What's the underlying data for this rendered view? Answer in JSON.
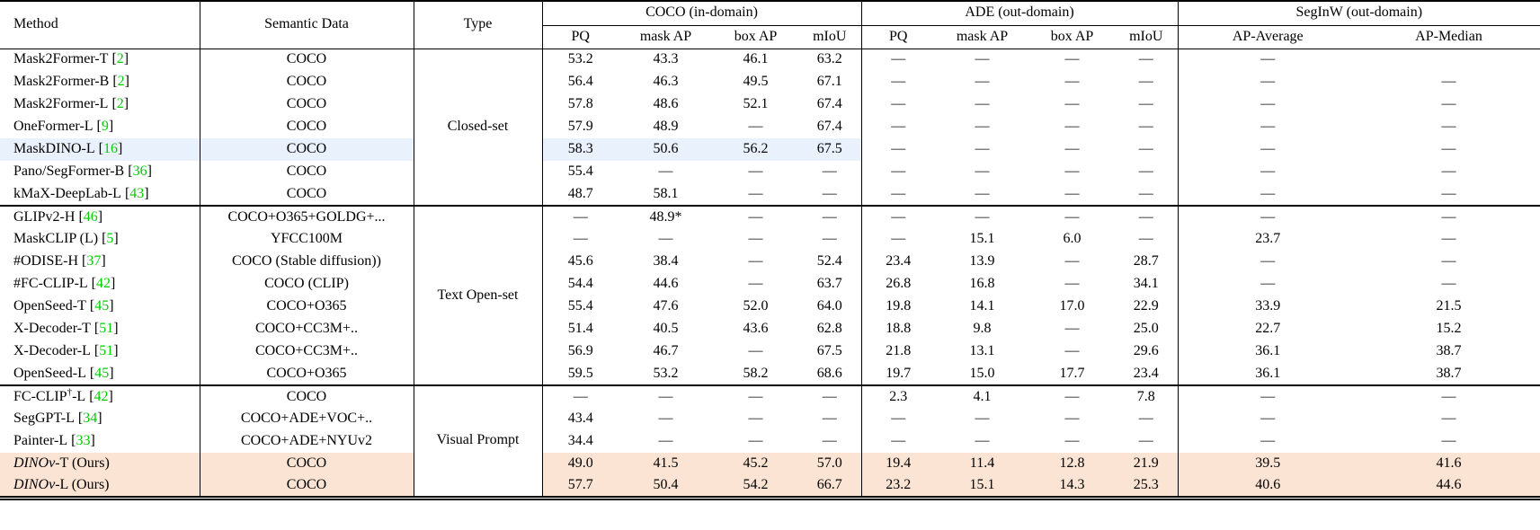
{
  "colors": {
    "citation_green": "#00cc00",
    "highlight_blue": "#e9f1fc",
    "highlight_orange": "#fbe4d3"
  },
  "header": {
    "method": "Method",
    "semantic_data": "Semantic Data",
    "type": "Type",
    "groups": [
      {
        "label": "COCO (in-domain)",
        "cols": [
          "PQ",
          "mask AP",
          "box AP",
          "mIoU"
        ]
      },
      {
        "label": "ADE (out-domain)",
        "cols": [
          "PQ",
          "mask AP",
          "box AP",
          "mIoU"
        ]
      },
      {
        "label": "SegInW (out-domain)",
        "cols": [
          "AP-Average",
          "AP-Median"
        ]
      }
    ]
  },
  "groups": [
    {
      "type_label": "Closed-set",
      "rows": [
        {
          "method": {
            "pre": "Mask2Former-T",
            "cite": "2"
          },
          "semantic": "COCO",
          "vals": [
            "53.2",
            "43.3",
            "46.1",
            "63.2",
            "—",
            "—",
            "—",
            "—",
            "—",
            ""
          ],
          "hl": ""
        },
        {
          "method": {
            "pre": "Mask2Former-B",
            "cite": "2"
          },
          "semantic": "COCO",
          "vals": [
            "56.4",
            "46.3",
            "49.5",
            "67.1",
            "—",
            "—",
            "—",
            "—",
            "—",
            "—"
          ],
          "hl": ""
        },
        {
          "method": {
            "pre": "Mask2Former-L",
            "cite": "2"
          },
          "semantic": "COCO",
          "vals": [
            "57.8",
            "48.6",
            "52.1",
            "67.4",
            "—",
            "—",
            "—",
            "—",
            "—",
            "—"
          ],
          "hl": ""
        },
        {
          "method": {
            "pre": "OneFormer-L",
            "cite": "9"
          },
          "semantic": "COCO",
          "vals": [
            "57.9",
            "48.9",
            "—",
            "67.4",
            "—",
            "—",
            "—",
            "—",
            "—",
            "—"
          ],
          "hl": ""
        },
        {
          "method": {
            "pre": "MaskDINO-L",
            "cite": "16"
          },
          "semantic": "COCO",
          "vals": [
            "58.3",
            "50.6",
            "56.2",
            "67.5",
            "—",
            "—",
            "—",
            "—",
            "—",
            "—"
          ],
          "hl": "blue"
        },
        {
          "method": {
            "pre": "Pano/SegFormer-B",
            "cite": "36"
          },
          "semantic": "COCO",
          "vals": [
            "55.4",
            "—",
            "—",
            "—",
            "—",
            "—",
            "—",
            "—",
            "—",
            "—"
          ],
          "hl": ""
        },
        {
          "method": {
            "pre": "kMaX-DeepLab-L",
            "cite": "43"
          },
          "semantic": "COCO",
          "vals": [
            "48.7",
            "58.1",
            "—",
            "—",
            "—",
            "—",
            "—",
            "—",
            "—",
            "—"
          ],
          "hl": ""
        }
      ]
    },
    {
      "type_label": "Text Open-set",
      "rows": [
        {
          "method": {
            "pre": "GLIPv2-H",
            "cite": "46"
          },
          "semantic": "COCO+O365+GOLDG+...",
          "vals": [
            "—",
            "48.9*",
            "—",
            "—",
            "—",
            "—",
            "—",
            "—",
            "—",
            "—"
          ],
          "hl": ""
        },
        {
          "method": {
            "pre": "MaskCLIP (L)",
            "cite": "5"
          },
          "semantic": "YFCC100M",
          "vals": [
            "—",
            "—",
            "—",
            "—",
            "—",
            "15.1",
            "6.0",
            "—",
            "23.7",
            "—"
          ],
          "hl": ""
        },
        {
          "method": {
            "pre": "#ODISE-H",
            "cite": "37"
          },
          "semantic": "COCO (Stable diffusion))",
          "vals": [
            "45.6",
            "38.4",
            "—",
            "52.4",
            "23.4",
            "13.9",
            "—",
            "28.7",
            "—",
            "—"
          ],
          "hl": ""
        },
        {
          "method": {
            "pre": "#FC-CLIP-L",
            "cite": "42"
          },
          "semantic": "COCO (CLIP)",
          "vals": [
            "54.4",
            "44.6",
            "—",
            "63.7",
            "26.8",
            "16.8",
            "—",
            "34.1",
            "—",
            "—"
          ],
          "hl": ""
        },
        {
          "method": {
            "pre": "OpenSeed-T",
            "cite": "45"
          },
          "semantic": "COCO+O365",
          "vals": [
            "55.4",
            "47.6",
            "52.0",
            "64.0",
            "19.8",
            "14.1",
            "17.0",
            "22.9",
            "33.9",
            "21.5"
          ],
          "hl": ""
        },
        {
          "method": {
            "pre": "X-Decoder-T",
            "cite": "51"
          },
          "semantic": "COCO+CC3M+..",
          "vals": [
            "51.4",
            "40.5",
            "43.6",
            "62.8",
            "18.8",
            "9.8",
            "—",
            "25.0",
            "22.7",
            "15.2"
          ],
          "hl": ""
        },
        {
          "method": {
            "pre": "X-Decoder-L",
            "cite": "51"
          },
          "semantic": "COCO+CC3M+..",
          "vals": [
            "56.9",
            "46.7",
            "—",
            "67.5",
            "21.8",
            "13.1",
            "—",
            "29.6",
            "36.1",
            "38.7"
          ],
          "hl": ""
        },
        {
          "method": {
            "pre": "OpenSeed-L",
            "cite": "45"
          },
          "semantic": "COCO+O365",
          "vals": [
            "59.5",
            "53.2",
            "58.2",
            "68.6",
            "19.7",
            "15.0",
            "17.7",
            "23.4",
            "36.1",
            "38.7"
          ],
          "hl": ""
        }
      ]
    },
    {
      "type_label": "Visual Prompt",
      "rows": [
        {
          "method": {
            "pre": "FC-CLIP",
            "sup": "†",
            "post": "-L",
            "cite": "42"
          },
          "semantic": "COCO",
          "vals": [
            "—",
            "—",
            "—",
            "—",
            "2.3",
            "4.1",
            "—",
            "7.8",
            "—",
            "—"
          ],
          "hl": ""
        },
        {
          "method": {
            "pre": "SegGPT-L",
            "cite": "34"
          },
          "semantic": "COCO+ADE+VOC+..",
          "vals": [
            "43.4",
            "—",
            "—",
            "—",
            "—",
            "—",
            "—",
            "—",
            "—",
            "—"
          ],
          "hl": ""
        },
        {
          "method": {
            "pre": "Painter-L",
            "cite": "33"
          },
          "semantic": "COCO+ADE+NYUv2",
          "vals": [
            "34.4",
            "—",
            "—",
            "—",
            "—",
            "—",
            "—",
            "—",
            "—",
            "—"
          ],
          "hl": ""
        },
        {
          "method": {
            "it": "DINOv",
            "post": "-T (Ours)"
          },
          "semantic": "COCO",
          "vals": [
            "49.0",
            "41.5",
            "45.2",
            "57.0",
            "19.4",
            "11.4",
            "12.8",
            "21.9",
            "39.5",
            "41.6"
          ],
          "hl": "orange"
        },
        {
          "method": {
            "it": "DINOv",
            "post": "-L (Ours)"
          },
          "semantic": "COCO",
          "vals": [
            "57.7",
            "50.4",
            "54.2",
            "66.7",
            "23.2",
            "15.1",
            "14.3",
            "25.3",
            "40.6",
            "44.6"
          ],
          "hl": "orange"
        }
      ]
    }
  ]
}
